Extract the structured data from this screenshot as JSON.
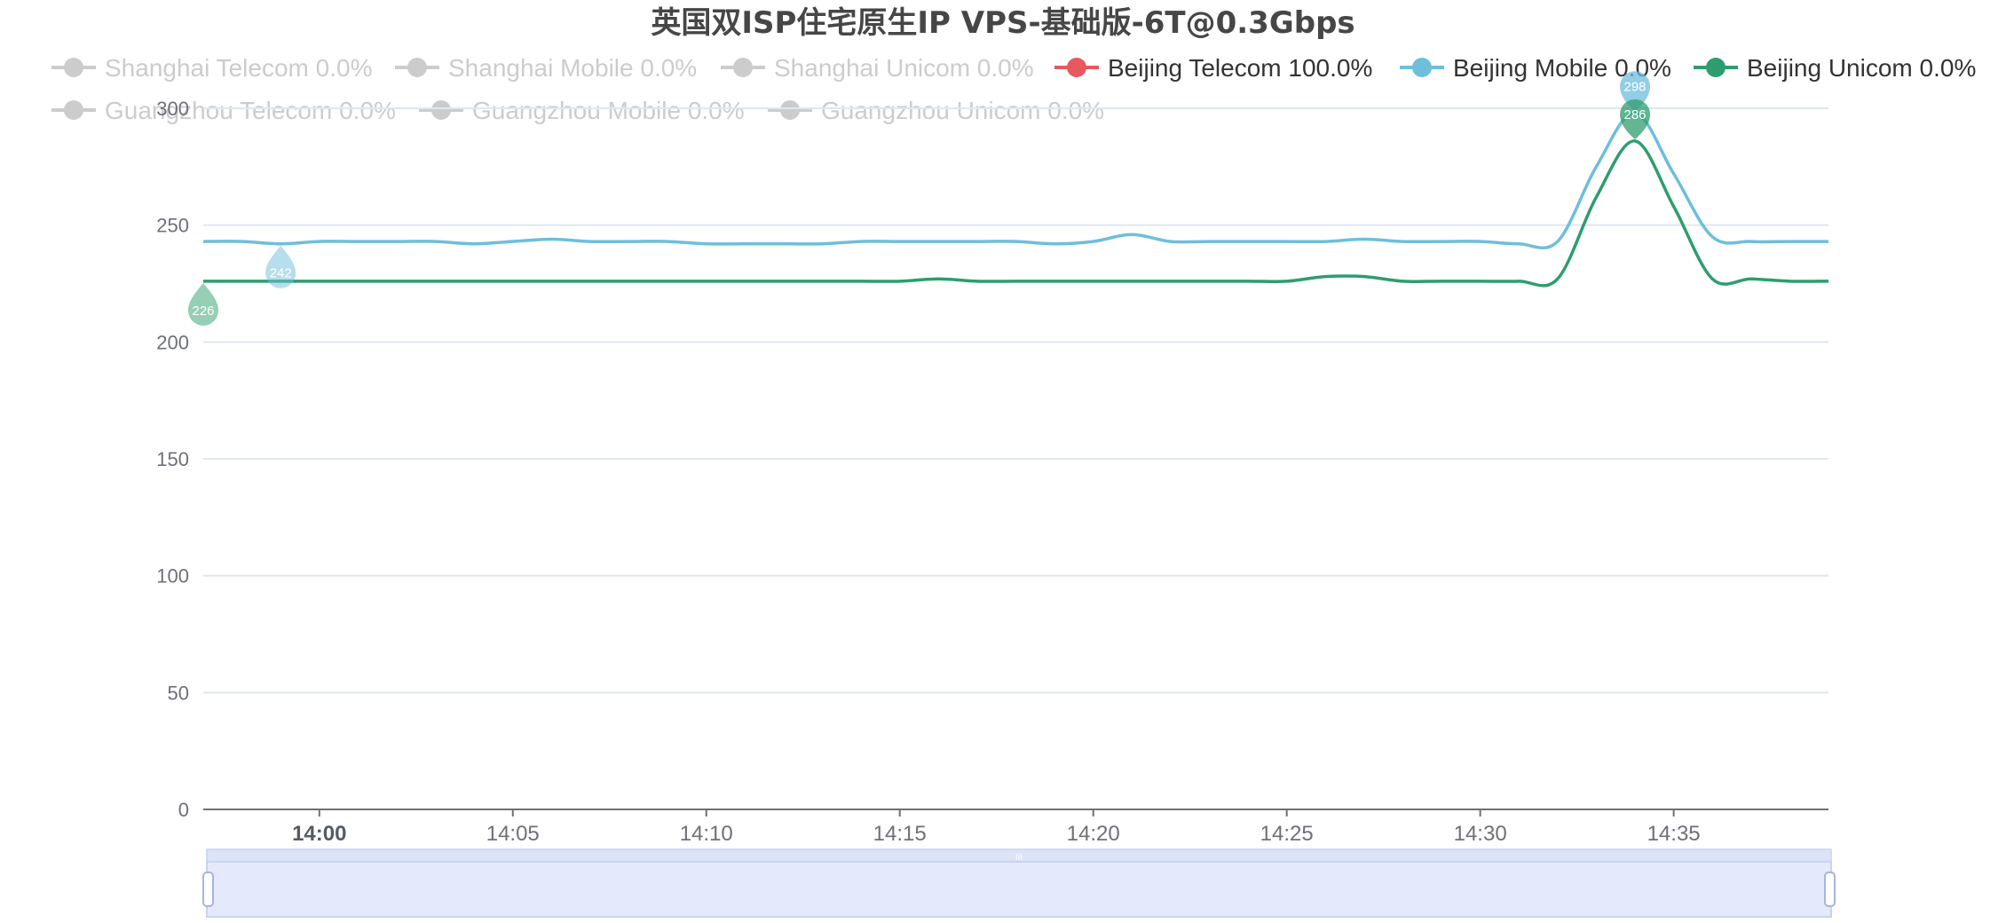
{
  "chart_data": {
    "type": "line",
    "title": "英国双ISP住宅原生IP VPS-基础版-6T@0.3Gbps",
    "xlabel": "",
    "ylabel": "",
    "ylim": [
      0,
      300
    ],
    "yticks": [
      0,
      50,
      100,
      150,
      200,
      250,
      300
    ],
    "xlim_minutes": [
      "13:57",
      "14:39"
    ],
    "xticks": [
      {
        "label": "14:00",
        "major": true
      },
      {
        "label": "14:05",
        "major": false
      },
      {
        "label": "14:10",
        "major": false
      },
      {
        "label": "14:15",
        "major": false
      },
      {
        "label": "14:20",
        "major": false
      },
      {
        "label": "14:25",
        "major": false
      },
      {
        "label": "14:30",
        "major": false
      },
      {
        "label": "14:35",
        "major": false
      }
    ],
    "grid": true,
    "legend_position": "top",
    "legend": [
      {
        "label": "Shanghai Telecom 0.0%",
        "color": "#cccccc",
        "active": false
      },
      {
        "label": "Shanghai Mobile 0.0%",
        "color": "#cccccc",
        "active": false
      },
      {
        "label": "Shanghai Unicom 0.0%",
        "color": "#cccccc",
        "active": false
      },
      {
        "label": "Beijing Telecom 100.0%",
        "color": "#e8585f",
        "active": true
      },
      {
        "label": "Beijing Mobile 0.0%",
        "color": "#6ebedc",
        "active": true
      },
      {
        "label": "Beijing Unicom 0.0%",
        "color": "#2e9d6e",
        "active": true
      },
      {
        "label": "Guangzhou Telecom 0.0%",
        "color": "#cccccc",
        "active": false
      },
      {
        "label": "Guangzhou Mobile 0.0%",
        "color": "#cccccc",
        "active": false
      },
      {
        "label": "Guangzhou Unicom 0.0%",
        "color": "#cccccc",
        "active": false
      }
    ],
    "series": [
      {
        "name": "Beijing Mobile 0.0%",
        "color": "#6ebedc",
        "x": [
          "13:57",
          "13:58",
          "13:59",
          "14:00",
          "14:01",
          "14:02",
          "14:03",
          "14:04",
          "14:05",
          "14:06",
          "14:07",
          "14:08",
          "14:09",
          "14:10",
          "14:11",
          "14:12",
          "14:13",
          "14:14",
          "14:15",
          "14:16",
          "14:17",
          "14:18",
          "14:19",
          "14:20",
          "14:21",
          "14:22",
          "14:23",
          "14:24",
          "14:25",
          "14:26",
          "14:27",
          "14:28",
          "14:29",
          "14:30",
          "14:31",
          "14:32",
          "14:33",
          "14:34",
          "14:35",
          "14:36",
          "14:37",
          "14:38",
          "14:39"
        ],
        "values": [
          243,
          243,
          242,
          243,
          243,
          243,
          243,
          242,
          243,
          244,
          243,
          243,
          243,
          242,
          242,
          242,
          242,
          243,
          243,
          243,
          243,
          243,
          242,
          243,
          246,
          243,
          243,
          243,
          243,
          243,
          244,
          243,
          243,
          243,
          242,
          243,
          275,
          298,
          272,
          245,
          243,
          243,
          243
        ],
        "markers": [
          {
            "label": "242",
            "x": "13:59",
            "value": 242,
            "kind": "min"
          },
          {
            "label": "298",
            "x": "14:34",
            "value": 298,
            "kind": "max"
          }
        ]
      },
      {
        "name": "Beijing Unicom 0.0%",
        "color": "#2e9d6e",
        "x": [
          "13:57",
          "13:58",
          "13:59",
          "14:00",
          "14:01",
          "14:02",
          "14:03",
          "14:04",
          "14:05",
          "14:06",
          "14:07",
          "14:08",
          "14:09",
          "14:10",
          "14:11",
          "14:12",
          "14:13",
          "14:14",
          "14:15",
          "14:16",
          "14:17",
          "14:18",
          "14:19",
          "14:20",
          "14:21",
          "14:22",
          "14:23",
          "14:24",
          "14:25",
          "14:26",
          "14:27",
          "14:28",
          "14:29",
          "14:30",
          "14:31",
          "14:32",
          "14:33",
          "14:34",
          "14:35",
          "14:36",
          "14:37",
          "14:38",
          "14:39"
        ],
        "values": [
          226,
          226,
          226,
          226,
          226,
          226,
          226,
          226,
          226,
          226,
          226,
          226,
          226,
          226,
          226,
          226,
          226,
          226,
          226,
          227,
          226,
          226,
          226,
          226,
          226,
          226,
          226,
          226,
          226,
          228,
          228,
          226,
          226,
          226,
          226,
          227,
          262,
          286,
          258,
          227,
          227,
          226,
          226
        ],
        "markers": [
          {
            "label": "226",
            "x": "13:57",
            "value": 226,
            "kind": "min"
          },
          {
            "label": "286",
            "x": "14:34",
            "value": 286,
            "kind": "max"
          }
        ]
      }
    ]
  },
  "datazoom": {
    "handle_label": "III"
  }
}
